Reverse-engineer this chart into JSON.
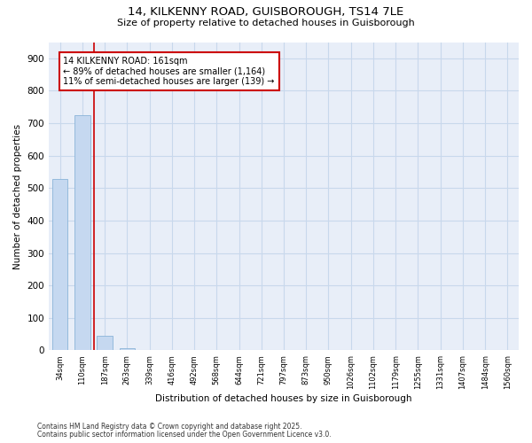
{
  "title1": "14, KILKENNY ROAD, GUISBOROUGH, TS14 7LE",
  "title2": "Size of property relative to detached houses in Guisborough",
  "xlabel": "Distribution of detached houses by size in Guisborough",
  "ylabel": "Number of detached properties",
  "bar_labels": [
    "34sqm",
    "110sqm",
    "187sqm",
    "263sqm",
    "339sqm",
    "416sqm",
    "492sqm",
    "568sqm",
    "644sqm",
    "721sqm",
    "797sqm",
    "873sqm",
    "950sqm",
    "1026sqm",
    "1102sqm",
    "1179sqm",
    "1255sqm",
    "1331sqm",
    "1407sqm",
    "1484sqm",
    "1560sqm"
  ],
  "bar_values": [
    527,
    725,
    46,
    7,
    2,
    0,
    0,
    0,
    0,
    0,
    0,
    0,
    0,
    0,
    0,
    0,
    0,
    0,
    0,
    0,
    0
  ],
  "bar_color": "#c5d8f0",
  "bar_edgecolor": "#8ab4d8",
  "vline_x": 1.5,
  "vline_color": "#cc0000",
  "annotation_text": "14 KILKENNY ROAD: 161sqm\n← 89% of detached houses are smaller (1,164)\n11% of semi-detached houses are larger (139) →",
  "box_color": "#cc0000",
  "ylim": [
    0,
    950
  ],
  "yticks": [
    0,
    100,
    200,
    300,
    400,
    500,
    600,
    700,
    800,
    900
  ],
  "footnote1": "Contains HM Land Registry data © Crown copyright and database right 2025.",
  "footnote2": "Contains public sector information licensed under the Open Government Licence v3.0.",
  "bg_color": "#ffffff",
  "plot_bg": "#e8eef8",
  "grid_color": "#c8d8ec",
  "figsize": [
    6.0,
    5.0
  ],
  "dpi": 100
}
